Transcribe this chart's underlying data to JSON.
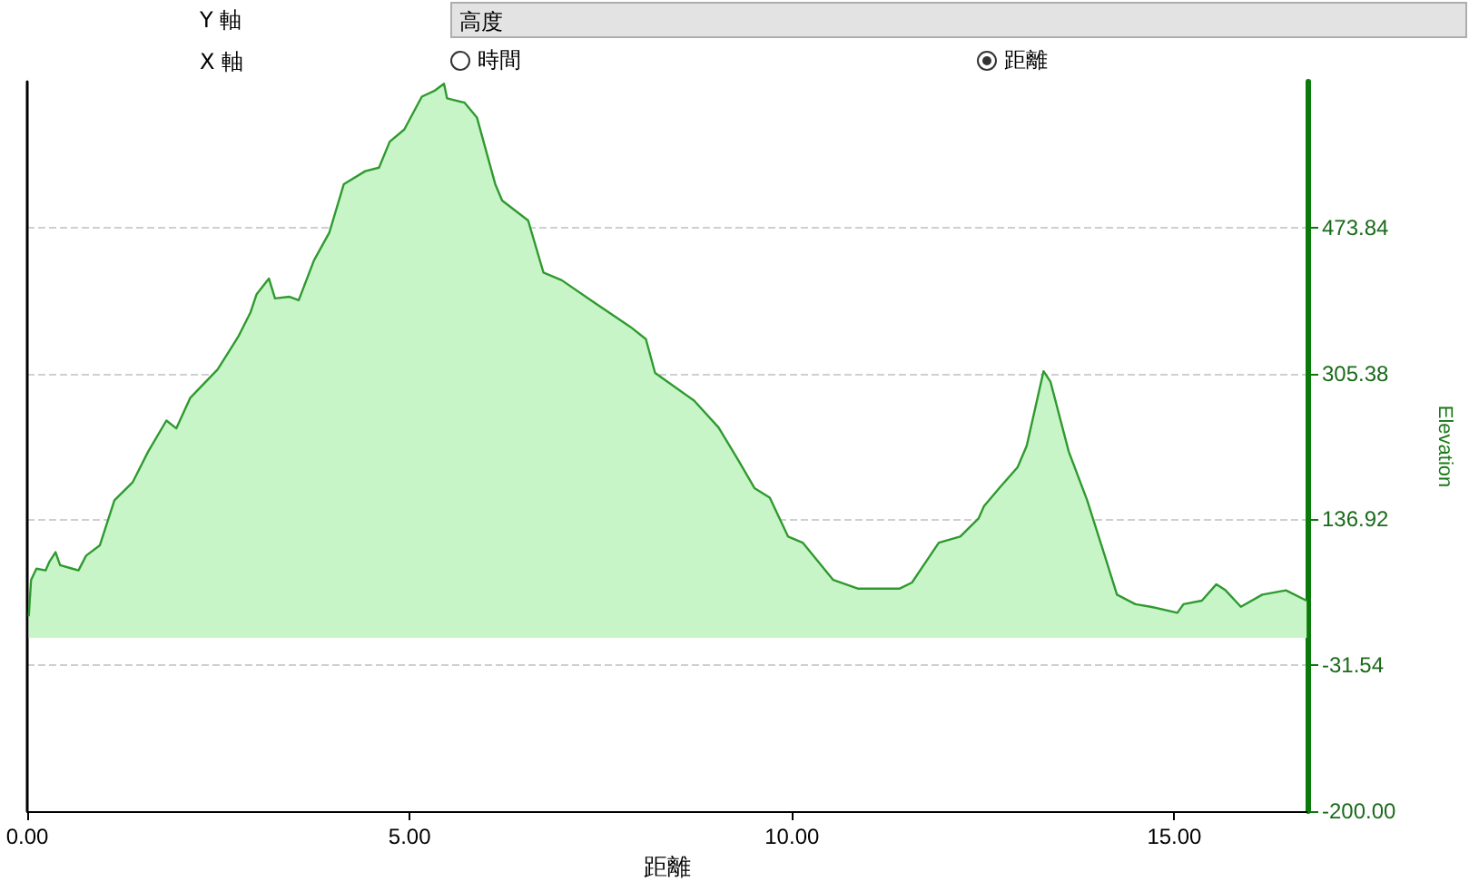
{
  "chart_data": {
    "type": "area",
    "xlabel": "距離",
    "ylabel": "Elevation",
    "annotations": [
      "Y 軸",
      "高度",
      "X 軸",
      "時間",
      "距離"
    ],
    "xlim": [
      0,
      16.74
    ],
    "xticks": [
      {
        "value": 0,
        "label": "0.00"
      },
      {
        "value": 5,
        "label": "5.00"
      },
      {
        "value": 10,
        "label": "10.00"
      },
      {
        "value": 15,
        "label": "15.00"
      }
    ],
    "ylim": [
      -200,
      642.3
    ],
    "yticks": [
      {
        "value": -200,
        "label": "-200.00"
      },
      -31.54,
      136.92,
      305.38,
      473.84
    ],
    "grid": "y",
    "marker": "none",
    "line_style": "solid",
    "series": [
      {
        "color": "#2f9a2f",
        "x": [
          0.02,
          0.05,
          0.12,
          0.24,
          0.29,
          0.37,
          0.43,
          0.59,
          0.67,
          0.77,
          0.95,
          1.14,
          1.38,
          1.58,
          1.82,
          1.95,
          2.13,
          2.49,
          2.76,
          2.92,
          3.0,
          3.16,
          3.24,
          3.43,
          3.55,
          3.75,
          3.95,
          4.14,
          4.42,
          4.6,
          4.74,
          4.93,
          5.16,
          5.33,
          5.45,
          5.49,
          5.72,
          5.88,
          6.12,
          6.21,
          6.55,
          6.75,
          6.99,
          7.42,
          7.89,
          8.09,
          8.21,
          8.72,
          9.04,
          9.28,
          9.51,
          9.71,
          9.95,
          10.14,
          10.54,
          10.86,
          11.41,
          11.57,
          11.92,
          12.2,
          12.44,
          12.51,
          12.71,
          12.95,
          13.07,
          13.29,
          13.38,
          13.62,
          13.86,
          14.09,
          14.25,
          14.49,
          14.69,
          15.04,
          15.12,
          15.36,
          15.55,
          15.67,
          15.87,
          16.15,
          16.46,
          16.73
        ],
        "values": [
          25,
          67,
          80,
          78,
          88,
          99,
          84,
          80,
          78,
          95,
          107,
          159,
          180,
          215,
          251,
          242,
          277,
          310,
          348,
          376,
          397,
          415,
          392,
          394,
          390,
          436,
          468,
          524,
          539,
          543,
          573,
          587,
          625,
          632,
          640,
          623,
          618,
          601,
          524,
          505,
          482,
          422,
          413,
          387,
          359,
          345,
          306,
          274,
          243,
          208,
          173,
          162,
          117,
          110,
          67,
          57,
          57,
          64,
          110,
          117,
          138,
          152,
          173,
          197,
          222,
          308,
          296,
          215,
          159,
          95,
          50,
          39,
          36,
          29,
          39,
          43,
          62,
          55,
          36,
          50,
          55,
          43
        ]
      }
    ]
  }
}
